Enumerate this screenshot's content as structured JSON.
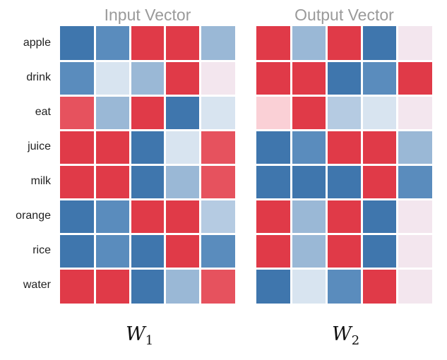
{
  "titles": {
    "input": "Input Vector",
    "output": "Output Vector"
  },
  "rows": [
    "apple",
    "drink",
    "eat",
    "juice",
    "milk",
    "orange",
    "rice",
    "water"
  ],
  "matrices": {
    "w1": {
      "letter": "W",
      "subscript": "1"
    },
    "w2": {
      "letter": "W",
      "subscript": "2"
    }
  },
  "colors": {
    "B": "#3f76ad",
    "b": "#5a8cbd",
    "m": "#9ab8d6",
    "l": "#b5cbe2",
    "p": "#d8e4f0",
    "R": "#e03a48",
    "r": "#e6525e",
    "k": "#fad0d6",
    "w": "#f3e6ee"
  },
  "input_cells": [
    [
      "B",
      "b",
      "R",
      "R",
      "m"
    ],
    [
      "b",
      "p",
      "m",
      "R",
      "w"
    ],
    [
      "r",
      "m",
      "R",
      "B",
      "p"
    ],
    [
      "R",
      "R",
      "B",
      "p",
      "r"
    ],
    [
      "R",
      "R",
      "B",
      "m",
      "r"
    ],
    [
      "B",
      "b",
      "R",
      "R",
      "l"
    ],
    [
      "B",
      "b",
      "B",
      "R",
      "b"
    ],
    [
      "R",
      "R",
      "B",
      "m",
      "r"
    ]
  ],
  "output_cells": [
    [
      "R",
      "m",
      "R",
      "B",
      "w"
    ],
    [
      "R",
      "R",
      "B",
      "b",
      "R"
    ],
    [
      "k",
      "R",
      "l",
      "p",
      "w"
    ],
    [
      "B",
      "b",
      "R",
      "R",
      "m"
    ],
    [
      "B",
      "B",
      "B",
      "R",
      "b"
    ],
    [
      "R",
      "m",
      "R",
      "B",
      "w"
    ],
    [
      "R",
      "m",
      "R",
      "B",
      "w"
    ],
    [
      "B",
      "p",
      "b",
      "R",
      "w"
    ]
  ]
}
